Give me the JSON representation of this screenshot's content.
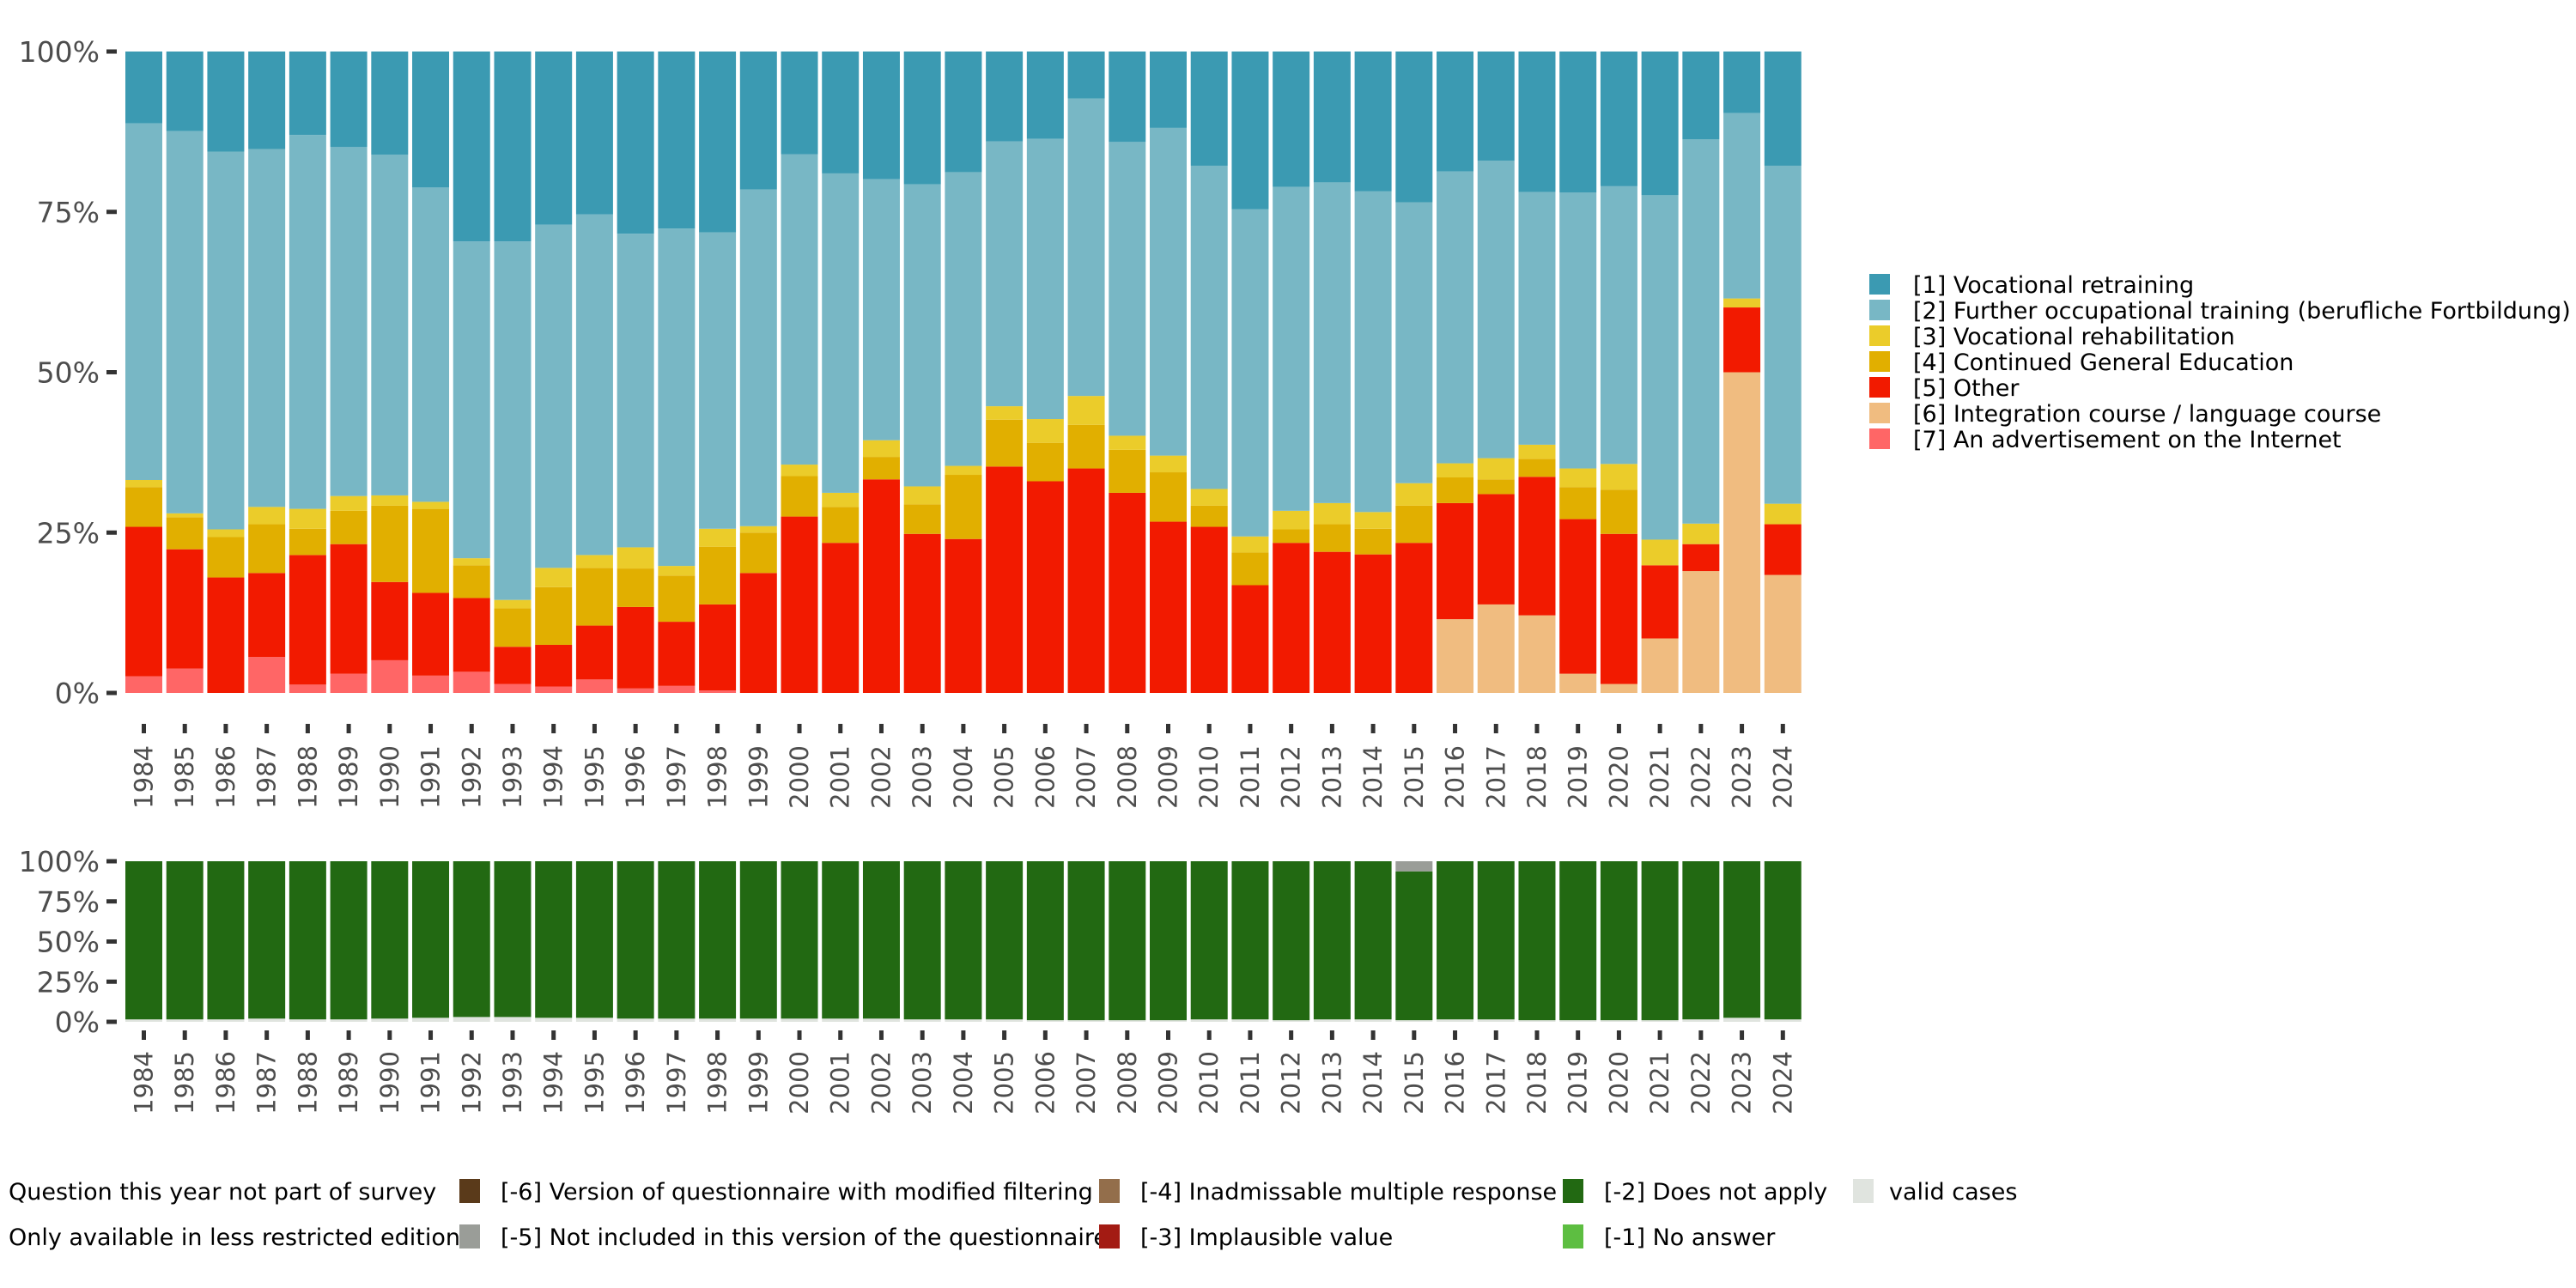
{
  "chart_data": [
    {
      "type": "bar",
      "stacked": "percent",
      "title": "",
      "xlabel": "",
      "ylabel": "",
      "ylim": [
        0,
        100
      ],
      "yticks": [
        "0%",
        "25%",
        "50%",
        "75%",
        "100%"
      ],
      "ytick_values": [
        0,
        25,
        50,
        75,
        100
      ],
      "legend_position": "right",
      "categories": [
        "1984",
        "1985",
        "1986",
        "1987",
        "1988",
        "1989",
        "1990",
        "1991",
        "1992",
        "1993",
        "1994",
        "1995",
        "1996",
        "1997",
        "1998",
        "1999",
        "2000",
        "2001",
        "2002",
        "2003",
        "2004",
        "2005",
        "2006",
        "2007",
        "2008",
        "2009",
        "2010",
        "2011",
        "2012",
        "2013",
        "2014",
        "2015",
        "2016",
        "2017",
        "2018",
        "2019",
        "2020",
        "2021",
        "2022",
        "2023",
        "2024"
      ],
      "series": [
        {
          "name": "[7] An advertisement on the Internet",
          "color": "#FF6666",
          "values": [
            2.6,
            3.8,
            0,
            5.6,
            1.3,
            3.0,
            5.1,
            2.7,
            3.3,
            1.4,
            1.0,
            2.1,
            0.7,
            1.1,
            0.4,
            0,
            0,
            0,
            0,
            0,
            0,
            0,
            0,
            0,
            0,
            0,
            0,
            0,
            0,
            0,
            0,
            0,
            0,
            0,
            0,
            0,
            0,
            0,
            0,
            0,
            0
          ]
        },
        {
          "name": "[6] Integration course / language course",
          "color": "#F0BC80",
          "values": [
            0,
            0,
            0,
            0,
            0,
            0,
            0,
            0,
            0,
            0,
            0,
            0,
            0,
            0,
            0,
            0,
            0,
            0,
            0,
            0,
            0,
            0,
            0,
            0,
            0,
            0,
            0,
            0,
            0,
            0,
            0,
            0,
            11.5,
            13.8,
            12.1,
            3.0,
            1.4,
            8.5,
            19.0,
            50.0,
            18.4
          ]
        },
        {
          "name": "[5] Other",
          "color": "#F21A00",
          "values": [
            23.3,
            18.6,
            18.0,
            13.1,
            20.2,
            20.2,
            12.2,
            12.9,
            11.5,
            5.8,
            6.5,
            8.4,
            12.7,
            10.0,
            13.4,
            18.7,
            27.5,
            23.4,
            33.3,
            24.8,
            24.0,
            35.3,
            33.0,
            35.0,
            31.2,
            26.7,
            25.9,
            16.8,
            23.4,
            22.0,
            21.6,
            23.4,
            18.1,
            17.2,
            21.6,
            24.1,
            23.4,
            11.4,
            4.2,
            10.1,
            7.9
          ]
        },
        {
          "name": "[4] Continued General Education",
          "color": "#E1AF00",
          "values": [
            6.2,
            5.0,
            6.3,
            7.6,
            4.1,
            5.2,
            11.9,
            13.1,
            5.1,
            6.0,
            9.0,
            9.0,
            6.0,
            7.2,
            9.0,
            6.3,
            6.3,
            5.6,
            3.5,
            4.6,
            10.0,
            7.3,
            6.0,
            6.8,
            6.7,
            7.7,
            3.3,
            5.1,
            2.1,
            4.3,
            4.0,
            5.8,
            4.0,
            2.3,
            2.8,
            5.0,
            6.9,
            0,
            0,
            0,
            0
          ]
        },
        {
          "name": "[3] Vocational rehabilitation",
          "color": "#EBCC2A",
          "values": [
            1.1,
            0.6,
            1.2,
            2.7,
            3.1,
            2.3,
            1.6,
            1.1,
            1.1,
            1.3,
            3.0,
            2.0,
            3.3,
            1.5,
            2.8,
            1.0,
            1.8,
            2.2,
            2.6,
            2.8,
            1.4,
            2.1,
            3.7,
            4.5,
            2.2,
            2.6,
            2.6,
            2.5,
            2.9,
            3.3,
            2.6,
            3.5,
            2.2,
            3.3,
            2.2,
            2.9,
            4.0,
            4.0,
            3.2,
            1.4,
            3.2
          ]
        },
        {
          "name": "[2] Further occupational training (berufliche Fortbildung)",
          "color": "#78B7C5",
          "values": [
            55.6,
            59.6,
            58.9,
            55.8,
            58.3,
            54.4,
            53.1,
            49.0,
            49.4,
            55.9,
            53.5,
            53.1,
            48.9,
            52.6,
            46.2,
            52.5,
            48.4,
            49.8,
            40.7,
            47.1,
            45.8,
            41.3,
            43.7,
            46.4,
            45.8,
            51.1,
            50.4,
            51.0,
            50.5,
            50.0,
            50.0,
            43.8,
            45.5,
            46.4,
            39.4,
            43.0,
            43.3,
            53.7,
            59.9,
            28.9,
            52.7
          ]
        },
        {
          "name": "[1] Vocational retraining",
          "color": "#3B9AB2",
          "values": [
            11.2,
            12.4,
            15.6,
            15.2,
            13.0,
            14.9,
            16.1,
            21.2,
            29.6,
            29.6,
            27.0,
            25.4,
            28.4,
            27.6,
            28.2,
            21.5,
            16.0,
            19.0,
            19.9,
            20.7,
            18.8,
            14.0,
            13.6,
            7.3,
            14.1,
            11.9,
            17.8,
            24.6,
            21.1,
            20.4,
            21.8,
            23.5,
            18.7,
            17.0,
            21.9,
            22.0,
            21.0,
            22.4,
            13.7,
            9.6,
            17.8
          ]
        }
      ]
    },
    {
      "type": "bar",
      "stacked": "percent",
      "title": "",
      "xlabel": "",
      "ylabel": "",
      "ylim": [
        0,
        100
      ],
      "yticks": [
        "0%",
        "25%",
        "50%",
        "75%",
        "100%"
      ],
      "ytick_values": [
        0,
        25,
        50,
        75,
        100
      ],
      "legend_position": "bottom",
      "categories": [
        "1984",
        "1985",
        "1986",
        "1987",
        "1988",
        "1989",
        "1990",
        "1991",
        "1992",
        "1993",
        "1994",
        "1995",
        "1996",
        "1997",
        "1998",
        "1999",
        "2000",
        "2001",
        "2002",
        "2003",
        "2004",
        "2005",
        "2006",
        "2007",
        "2008",
        "2009",
        "2010",
        "2011",
        "2012",
        "2013",
        "2014",
        "2015",
        "2016",
        "2017",
        "2018",
        "2019",
        "2020",
        "2021",
        "2022",
        "2023",
        "2024"
      ],
      "series": [
        {
          "name": "valid cases",
          "color": "#E0E4DF",
          "values": [
            1.5,
            1.5,
            1.5,
            2,
            1.5,
            1.5,
            2,
            2.5,
            3,
            3,
            2.5,
            2.5,
            2,
            2,
            2,
            2,
            2,
            2,
            2,
            1.5,
            1.5,
            1.5,
            1,
            1,
            1,
            1,
            1.5,
            1.5,
            1,
            1.5,
            1.5,
            1,
            1.5,
            1.5,
            1,
            1,
            1,
            1,
            1.5,
            2.5,
            1.5
          ]
        },
        {
          "name": "[-2] Does not apply",
          "color": "#226912",
          "values": [
            98.5,
            98.5,
            98.5,
            98,
            98.5,
            98.5,
            98,
            97.5,
            97,
            97,
            97.5,
            97.5,
            98,
            98,
            98,
            98,
            98,
            98,
            98,
            98.5,
            98.5,
            98.5,
            99,
            99,
            99,
            99,
            98.5,
            98.5,
            99,
            98.5,
            98.5,
            92.7,
            98.5,
            98.5,
            99,
            99,
            99,
            99,
            98.5,
            97.5,
            98.5
          ]
        },
        {
          "name": "[-5] Not included in this version of the questionnaire",
          "color": "#9A9D98",
          "values": [
            0,
            0,
            0,
            0,
            0,
            0,
            0,
            0,
            0,
            0,
            0,
            0,
            0,
            0,
            0,
            0,
            0,
            0,
            0,
            0,
            0,
            0,
            0,
            0,
            0,
            0,
            0,
            0,
            0,
            0,
            0,
            6.3,
            0,
            0,
            0,
            0,
            0,
            0,
            0,
            0,
            0
          ]
        }
      ]
    }
  ],
  "legend_main": [
    {
      "label": "[1] Vocational retraining",
      "color": "#3B9AB2"
    },
    {
      "label": "[2] Further occupational training (berufliche Fortbildung)",
      "color": "#78B7C5"
    },
    {
      "label": "[3] Vocational rehabilitation",
      "color": "#EBCC2A"
    },
    {
      "label": "[4] Continued General Education",
      "color": "#E1AF00"
    },
    {
      "label": "[5] Other",
      "color": "#F21A00"
    },
    {
      "label": "[6] Integration course / language course",
      "color": "#F0BC80"
    },
    {
      "label": "[7] An advertisement on the Internet",
      "color": "#FF6666"
    }
  ],
  "legend_missing": [
    {
      "label": "Question this year not part of survey",
      "color": null
    },
    {
      "label": "Only available in less restricted edition",
      "color": null
    },
    {
      "label": "[-6] Version of questionnaire with modified filtering",
      "color": "#5A3A1A"
    },
    {
      "label": "[-5] Not included in this version of the questionnaire",
      "color": "#9A9D98"
    },
    {
      "label": "[-4] Inadmissable multiple response",
      "color": "#936E4B"
    },
    {
      "label": "[-3] Implausible value",
      "color": "#A31B13"
    },
    {
      "label": "[-2] Does not apply",
      "color": "#226912"
    },
    {
      "label": "[-1] No answer",
      "color": "#5DBE41"
    },
    {
      "label": "valid cases",
      "color": "#E0E4DF"
    }
  ]
}
